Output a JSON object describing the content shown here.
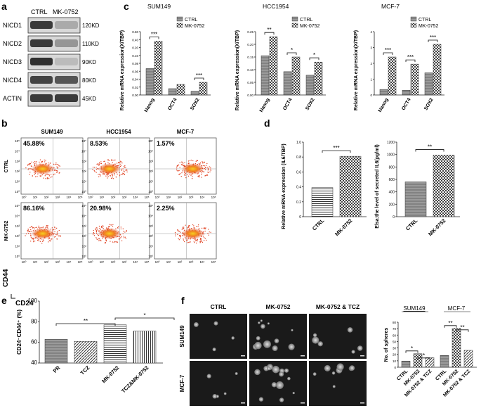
{
  "colors": {
    "band": "#1e1e1e",
    "blot_bg": "#d8d8d8",
    "dot": "#e04020",
    "dot_core": "#f0c020",
    "bar_gray": "#8a8a8a",
    "micro_bg": "#1a1a1a"
  },
  "panel_a": {
    "label": "a",
    "columns": [
      "CTRL",
      "MK-0752"
    ],
    "rows": [
      {
        "name": "NICD1",
        "kd": "120KD",
        "ctrl": 0.85,
        "mk": 0.25
      },
      {
        "name": "NICD2",
        "kd": "110KD",
        "ctrl": 0.85,
        "mk": 0.35
      },
      {
        "name": "NICD3",
        "kd": "90KD",
        "ctrl": 0.9,
        "mk": 0.15
      },
      {
        "name": "NICD4",
        "kd": "80KD",
        "ctrl": 0.8,
        "mk": 0.7
      },
      {
        "name": "ACTIN",
        "kd": "45KD",
        "ctrl": 0.85,
        "mk": 0.85
      }
    ]
  },
  "panel_b": {
    "label": "b",
    "columns": [
      "SUM149",
      "HCC1954",
      "MCF-7"
    ],
    "rows": [
      {
        "name": "CTRL",
        "values": [
          "45.88%",
          "8.53%",
          "1.57%"
        ]
      },
      {
        "name": "MK-0752",
        "values": [
          "86.16%",
          "20.98%",
          "2.25%"
        ]
      }
    ],
    "ticks": [
      "10⁵",
      "10⁴",
      "10³",
      "10²",
      "10¹",
      "10⁰"
    ],
    "y_axis": "CD44",
    "x_axis": "CD24"
  },
  "panel_c": {
    "label": "c",
    "ylabel": "Relative mRNA expression(X/TBP)",
    "legend": [
      "CTRL",
      "MK-0752"
    ],
    "chart_data": [
      {
        "type": "bar",
        "title": "SUM149",
        "categories": [
          "Nanog",
          "OCT4",
          "SOX2"
        ],
        "series": [
          {
            "name": "CTRL",
            "values": [
              0.25,
              0.06,
              0.035
            ]
          },
          {
            "name": "MK-0752",
            "values": [
              0.51,
              0.1,
              0.12
            ]
          }
        ],
        "ylim": [
          0,
          0.6
        ],
        "yticks": [
          "0.00",
          "0.02",
          "0.04",
          "0.06",
          "0.08",
          "0.10",
          "0.20",
          "0.40",
          "0.60"
        ],
        "sig": [
          "***",
          "",
          "***"
        ]
      },
      {
        "type": "bar",
        "title": "HCC1954",
        "categories": [
          "Nanog",
          "OCT4",
          "SOX2"
        ],
        "series": [
          {
            "name": "CTRL",
            "values": [
              0.155,
              0.092,
              0.078
            ]
          },
          {
            "name": "MK-0752",
            "values": [
              0.23,
              0.15,
              0.13
            ]
          }
        ],
        "ylim": [
          0,
          0.25
        ],
        "yticks": [
          "0.00",
          "0.05",
          "0.10",
          "0.15",
          "0.20",
          "0.25"
        ],
        "sig": [
          "**",
          "*",
          "*"
        ]
      },
      {
        "type": "bar",
        "title": "MCF-7",
        "categories": [
          "Nanog",
          "OCT4",
          "SOX2"
        ],
        "series": [
          {
            "name": "CTRL",
            "values": [
              0.35,
              0.3,
              1.4
            ]
          },
          {
            "name": "MK-0752",
            "values": [
              2.4,
              1.95,
              3.2
            ]
          }
        ],
        "ylim": [
          0,
          4
        ],
        "yticks": [
          "0",
          "1",
          "2",
          "3",
          "4"
        ],
        "sig": [
          "***",
          "***",
          "***"
        ]
      }
    ]
  },
  "panel_d": {
    "label": "d",
    "chart_data": [
      {
        "type": "bar",
        "categories": [
          "CTRL",
          "MK-0752"
        ],
        "values": [
          0.39,
          0.81
        ],
        "ylim": [
          0,
          1.0
        ],
        "ylabel": "Relative mRNA expression (IL6/TBP)",
        "yticks": [
          "0",
          "0.2",
          "0.4",
          "0.6",
          "0.8",
          "1.0"
        ],
        "sig": "***"
      },
      {
        "type": "bar",
        "categories": [
          "CTRL",
          "MK-0752"
        ],
        "values": [
          560,
          990
        ],
        "ylim": [
          0,
          1200
        ],
        "ylabel": "Elsa:the level of secreted IL6(pg/ml)",
        "yticks": [
          "0",
          "200",
          "400",
          "600",
          "800",
          "1000",
          "1200"
        ],
        "sig": "**"
      }
    ]
  },
  "panel_e": {
    "label": "e",
    "chart_data": {
      "type": "bar",
      "categories": [
        "PR",
        "TCZ",
        "MK-0752",
        "TCZ&MK-0752"
      ],
      "values": [
        63,
        61,
        77,
        71
      ],
      "ylim": [
        40,
        100
      ],
      "yticks": [
        "40",
        "60",
        "80",
        "100"
      ],
      "ylabel": "CD24⁻CD44⁺ (%)",
      "sig": [
        {
          "label": "**"
        },
        {
          "label": "*"
        }
      ]
    }
  },
  "panel_f": {
    "label": "f",
    "columns": [
      "CTRL",
      "MK-0752",
      "MK-0752 & TCZ"
    ],
    "rows": [
      "SUM149",
      "MCF-7"
    ],
    "chart_data": {
      "type": "bar",
      "groups": [
        "SUM149",
        "MCF-7"
      ],
      "categories": [
        "CTRL",
        "MK-0752",
        "MK-0752 & TCZ",
        "CTRL",
        "MK-0752",
        "MK-0752 & TCZ"
      ],
      "values": [
        11,
        24,
        17,
        21,
        69,
        30
      ],
      "ylim": [
        0,
        80
      ],
      "yticks": [
        "0",
        "10",
        "20",
        "30",
        "50",
        "60",
        "70",
        "80"
      ],
      "ylabel": "No. of spheres",
      "sig": [
        "*",
        "*",
        "**",
        "**"
      ]
    }
  }
}
